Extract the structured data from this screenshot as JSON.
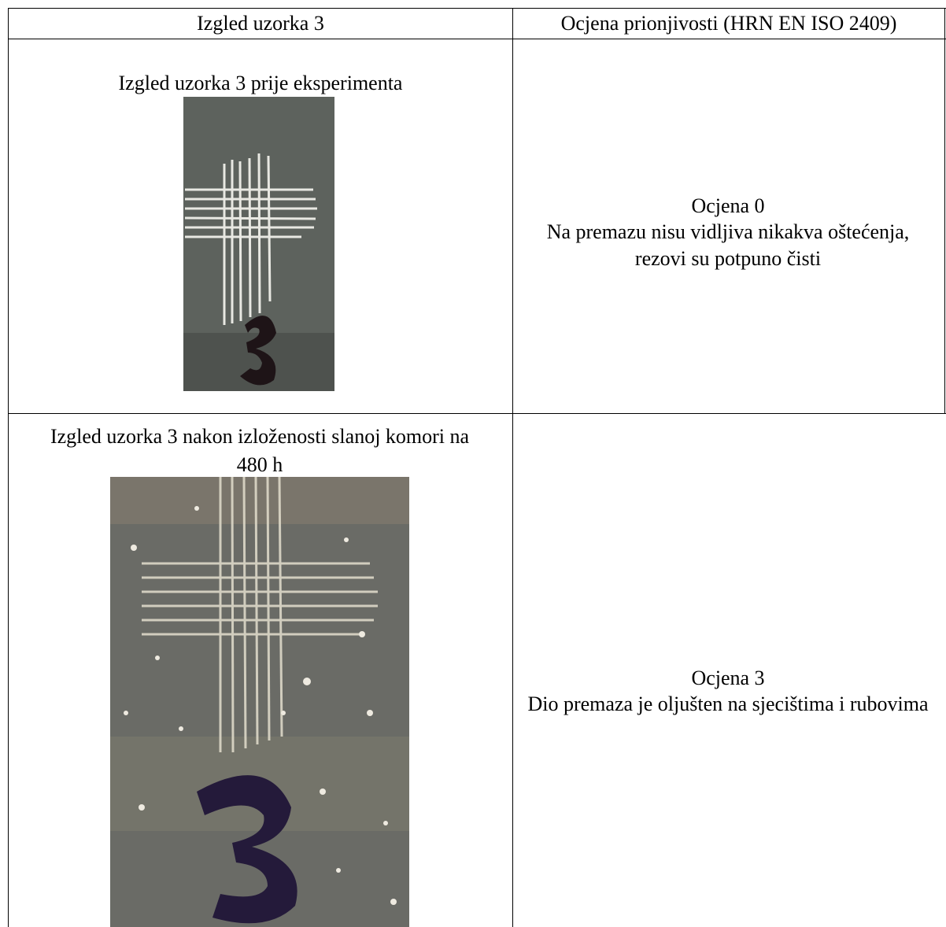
{
  "table": {
    "header": [
      "Izgled uzorka 3",
      "Ocjena prionjivosti (HRN EN ISO 2409)"
    ],
    "rows": [
      {
        "caption": "Izgled uzorka 3 prije eksperimenta",
        "grade": "Ocjena 0",
        "description": "Na premazu nisu vidljiva nikakva oštećenja, rezovi su potpuno čisti"
      },
      {
        "caption": "Izgled uzorka 3 nakon izloženosti slanoj komori na 480 h",
        "grade": "Ocjena 3",
        "description": "Dio premaza je oljušten na sjecištima i rubovima"
      }
    ]
  }
}
